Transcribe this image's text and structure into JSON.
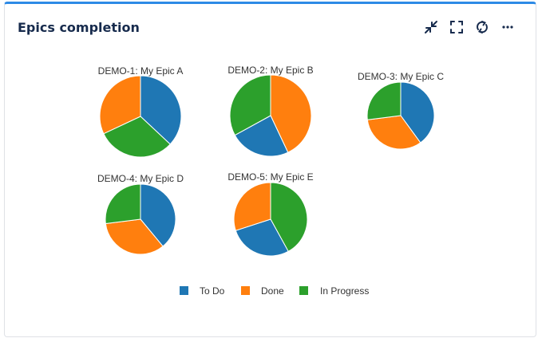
{
  "widget": {
    "title": "Epics completion",
    "actions": [
      {
        "name": "minimize-icon"
      },
      {
        "name": "fullscreen-icon"
      },
      {
        "name": "refresh-icon"
      },
      {
        "name": "more-icon"
      }
    ]
  },
  "colors": {
    "todo": "#1f77b4",
    "done": "#ff7f0e",
    "inprogress": "#2ca02c"
  },
  "chart_data": {
    "type": "pie",
    "legend_position": "bottom",
    "legend": [
      "To Do",
      "Done",
      "In Progress"
    ],
    "pies": [
      {
        "title": "DEMO-1: My Epic A",
        "values": {
          "To Do": 37,
          "In Progress": 31,
          "Done": 32
        }
      },
      {
        "title": "DEMO-2: My Epic B",
        "values": {
          "Done": 43,
          "To Do": 24,
          "In Progress": 33
        }
      },
      {
        "title": "DEMO-3: My Epic C",
        "values": {
          "To Do": 40,
          "Done": 33,
          "In Progress": 27
        }
      },
      {
        "title": "DEMO-4: My Epic D",
        "values": {
          "To Do": 39,
          "Done": 34,
          "In Progress": 27
        }
      },
      {
        "title": "DEMO-5: My Epic E",
        "values": {
          "In Progress": 42,
          "To Do": 28,
          "Done": 30
        }
      }
    ]
  }
}
